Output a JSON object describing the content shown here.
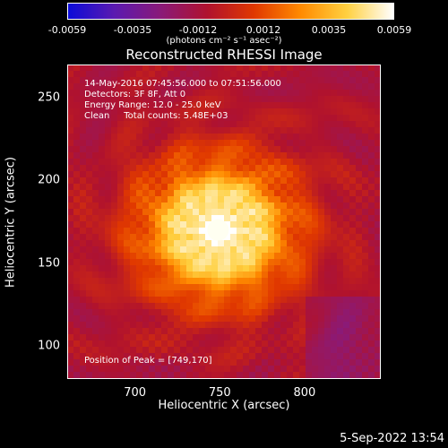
{
  "colorbar": {
    "tick_labels": [
      "-0.0059",
      "-0.0035",
      "-0.0012",
      "0.0012",
      "0.0035",
      "0.0059"
    ],
    "unit_label": "(photons cm⁻² s⁻¹ asec⁻²)",
    "colors": [
      "#0b0bd8",
      "#5b1ab0",
      "#8a1a78",
      "#b0122e",
      "#e03800",
      "#ff8a00",
      "#ffd040",
      "#ffffff"
    ]
  },
  "chart_data": {
    "type": "heatmap",
    "title": "Reconstructed RHESSI Image",
    "xlabel": "Heliocentric X (arcsec)",
    "ylabel": "Heliocentric Y (arcsec)",
    "xlim": [
      660,
      845
    ],
    "ylim": [
      80,
      270
    ],
    "x_ticks": [
      700,
      750,
      800
    ],
    "y_ticks": [
      100,
      150,
      200,
      250
    ],
    "peak": {
      "x": 749,
      "y": 170
    },
    "annotations": [
      "14-May-2016 07:45:56.000 to 07:51:56.000",
      "Detectors: 3F 8F, Att 0",
      "Energy Range: 12.0 - 25.0 keV",
      "Clean     Total counts: 5.48E+03"
    ],
    "peak_label": "Position of Peak = [749,170]",
    "colorbar_range": [
      -0.0059,
      0.0059
    ]
  },
  "footer": {
    "timestamp": "5-Sep-2022 13:54"
  }
}
